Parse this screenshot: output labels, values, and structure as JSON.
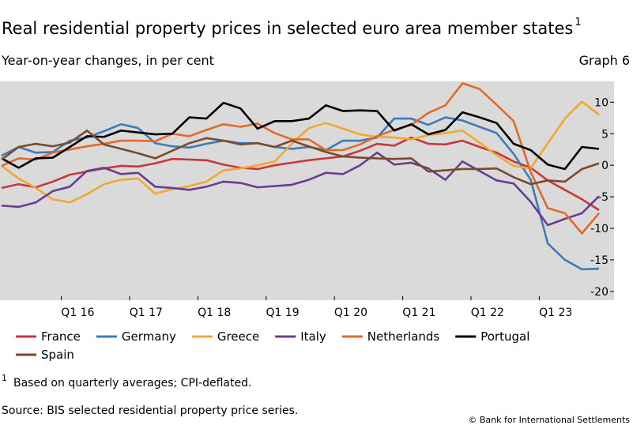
{
  "chart_data": {
    "type": "line",
    "title": "Real residential property prices in selected euro area member states",
    "title_note": "1",
    "subtitle": "Year-on-year changes, in per cent",
    "graph_label": "Graph 6",
    "categories": [
      null,
      null,
      null,
      null,
      "Q1 16",
      null,
      null,
      null,
      "Q1 17",
      null,
      null,
      null,
      "Q1 18",
      null,
      null,
      null,
      "Q1 19",
      null,
      null,
      null,
      "Q1 20",
      null,
      null,
      null,
      "Q1 21",
      null,
      null,
      null,
      "Q1 22",
      null,
      null,
      null,
      "Q1 23",
      null,
      null,
      null
    ],
    "ylim": [
      -21.4,
      13.3
    ],
    "yticks": [
      10,
      5,
      0,
      -5,
      -10,
      -15,
      -20
    ],
    "grid": false,
    "series": [
      {
        "name": "France",
        "color": "#c8373a",
        "values": [
          -3.6,
          -3,
          -3.5,
          -2.6,
          -1.5,
          -1,
          -0.5,
          -0.1,
          -0.2,
          0.3,
          1,
          0.9,
          0.8,
          0.1,
          -0.4,
          -0.6,
          0,
          0.4,
          0.8,
          1.1,
          1.4,
          2.3,
          3.4,
          3.1,
          4.4,
          3.4,
          3.3,
          3.9,
          2.9,
          2,
          0.6,
          -0.4,
          -2.4,
          -3.9,
          -5.4,
          -7.1
        ]
      },
      {
        "name": "Germany",
        "color": "#3d7ab9",
        "values": [
          1.5,
          2.9,
          2,
          2.1,
          3.9,
          4.4,
          5.4,
          6.5,
          5.9,
          3.5,
          3,
          2.8,
          3.4,
          3.9,
          3.5,
          3.5,
          2.9,
          2.6,
          2.9,
          2.4,
          3.9,
          3.9,
          4.4,
          7.4,
          7.4,
          6.4,
          7.6,
          7.1,
          6.1,
          5.1,
          1.8,
          -2.3,
          -12.4,
          -15,
          -16.5,
          -16.4
        ]
      },
      {
        "name": "Greece",
        "color": "#f0a830",
        "values": [
          -0.1,
          -2.1,
          -3.6,
          -5.4,
          -5.9,
          -4.6,
          -3,
          -2.3,
          -2.1,
          -4.5,
          -3.8,
          -3.3,
          -2.6,
          -0.8,
          -0.5,
          0,
          0.6,
          3.4,
          5.9,
          6.7,
          5.8,
          4.9,
          4.5,
          4.4,
          4.1,
          4.8,
          5.1,
          5.5,
          3.6,
          1.6,
          -0.1,
          -0.5,
          3.5,
          7.4,
          10.1,
          8
        ]
      },
      {
        "name": "Italy",
        "color": "#6a3d8f",
        "values": [
          -6.4,
          -6.6,
          -5.9,
          -4.1,
          -3.4,
          -0.9,
          -0.4,
          -1.4,
          -1.2,
          -3.4,
          -3.6,
          -3.9,
          -3.4,
          -2.6,
          -2.8,
          -3.5,
          -3.3,
          -3.1,
          -2.3,
          -1.2,
          -1.4,
          0,
          2,
          0.1,
          0.4,
          -0.5,
          -2.3,
          0.6,
          -0.9,
          -2.4,
          -2.9,
          -5.8,
          -9.5,
          -8.5,
          -7.6,
          -4.9
        ]
      },
      {
        "name": "Netherlands",
        "color": "#e06a2a",
        "values": [
          -0.1,
          1.1,
          0.9,
          2,
          2.5,
          3,
          3.4,
          3.9,
          3.9,
          3.8,
          5,
          4.6,
          5.6,
          6.5,
          6.1,
          6.6,
          5.1,
          4.1,
          4.1,
          2.4,
          2.4,
          3.3,
          4.6,
          5.6,
          6.4,
          8.3,
          9.5,
          13,
          12.1,
          9.6,
          7,
          -1.1,
          -6.8,
          -7.6,
          -10.8,
          -7.6
        ]
      },
      {
        "name": "Portugal",
        "color": "#000000",
        "values": [
          1.1,
          -0.4,
          1.1,
          1.2,
          2.9,
          4.6,
          4.5,
          5.5,
          5.2,
          4.9,
          5,
          7.6,
          7.4,
          9.9,
          9,
          5.8,
          7,
          7,
          7.4,
          9.5,
          8.6,
          8.7,
          8.6,
          5.5,
          6.5,
          4.9,
          5.6,
          8.4,
          7.6,
          6.7,
          3.4,
          2.4,
          0.1,
          -0.6,
          2.9,
          2.6
        ]
      },
      {
        "name": "Spain",
        "color": "#7a4a2a",
        "values": [
          0.9,
          2.9,
          3.4,
          3,
          3.6,
          5.5,
          3.3,
          2.6,
          1.9,
          1.1,
          2.3,
          3.5,
          4.3,
          3.9,
          3.3,
          3.5,
          2.9,
          3.9,
          3,
          2.1,
          1.4,
          1.2,
          1.1,
          1,
          1.1,
          -1,
          -0.8,
          -0.6,
          -0.6,
          -0.5,
          -1.9,
          -3,
          -2.4,
          -2.6,
          -0.6,
          0.3
        ]
      }
    ]
  },
  "footnote": {
    "marker": "1",
    "text": "Based on quarterly averages; CPI-deflated."
  },
  "source": "Source: BIS selected residential property price series.",
  "copyright": "© Bank for International Settlements"
}
